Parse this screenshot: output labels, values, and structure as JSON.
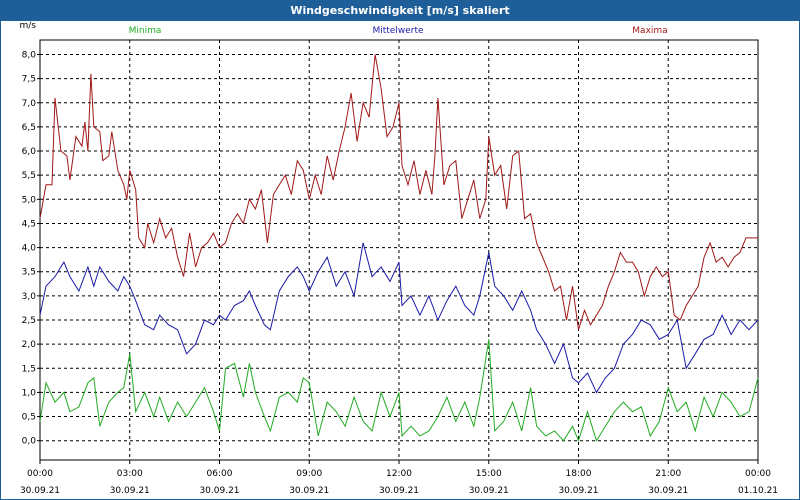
{
  "window": {
    "title": "Windgeschwindigkeit [m/s] skaliert"
  },
  "colors": {
    "titlebar": "#1f5f99",
    "minima": "#22aa22",
    "mittel": "#1a1aa8",
    "maxima": "#a01818",
    "grid": "#000000"
  },
  "chart_data": {
    "type": "line",
    "title": "Windgeschwindigkeit [m/s] skaliert",
    "ylabel": "m/s",
    "xlabel": "",
    "ylim": [
      -0.4,
      8.3
    ],
    "grid": true,
    "legend_placement": "top",
    "y_ticks": [
      "0,0",
      "0,5",
      "1,0",
      "1,5",
      "2,0",
      "2,5",
      "3,0",
      "3,5",
      "4,0",
      "4,5",
      "5,0",
      "5,5",
      "6,0",
      "6,5",
      "7,0",
      "7,5",
      "8,0"
    ],
    "x_ticks": [
      {
        "time": "00:00",
        "date": "30.09.21"
      },
      {
        "time": "03:00",
        "date": "30.09.21"
      },
      {
        "time": "06:00",
        "date": "30.09.21"
      },
      {
        "time": "09:00",
        "date": "30.09.21"
      },
      {
        "time": "12:00",
        "date": "30.09.21"
      },
      {
        "time": "15:00",
        "date": "30.09.21"
      },
      {
        "time": "18:00",
        "date": "30.09.21"
      },
      {
        "time": "21:00",
        "date": "30.09.21"
      },
      {
        "time": "00:00",
        "date": "01.10.21"
      }
    ],
    "x_range_hours": [
      0,
      24
    ],
    "series": [
      {
        "name": "Minima",
        "points": [
          [
            0,
            0.4
          ],
          [
            0.2,
            1.2
          ],
          [
            0.5,
            0.8
          ],
          [
            0.8,
            1.0
          ],
          [
            1.0,
            0.6
          ],
          [
            1.3,
            0.7
          ],
          [
            1.6,
            1.2
          ],
          [
            1.8,
            1.3
          ],
          [
            2.0,
            0.3
          ],
          [
            2.3,
            0.8
          ],
          [
            2.6,
            1.0
          ],
          [
            2.8,
            1.1
          ],
          [
            3.0,
            1.8
          ],
          [
            3.2,
            0.6
          ],
          [
            3.5,
            1.0
          ],
          [
            3.8,
            0.5
          ],
          [
            4.0,
            0.9
          ],
          [
            4.3,
            0.4
          ],
          [
            4.6,
            0.8
          ],
          [
            4.9,
            0.5
          ],
          [
            5.2,
            0.8
          ],
          [
            5.5,
            1.1
          ],
          [
            5.8,
            0.6
          ],
          [
            6.0,
            0.2
          ],
          [
            6.2,
            1.5
          ],
          [
            6.5,
            1.6
          ],
          [
            6.8,
            0.9
          ],
          [
            7.0,
            1.6
          ],
          [
            7.2,
            1.0
          ],
          [
            7.5,
            0.5
          ],
          [
            7.7,
            0.2
          ],
          [
            8.0,
            0.9
          ],
          [
            8.3,
            1.0
          ],
          [
            8.6,
            0.8
          ],
          [
            8.8,
            1.3
          ],
          [
            9.0,
            1.2
          ],
          [
            9.3,
            0.1
          ],
          [
            9.6,
            0.8
          ],
          [
            9.9,
            0.6
          ],
          [
            10.2,
            0.3
          ],
          [
            10.5,
            0.9
          ],
          [
            10.8,
            0.4
          ],
          [
            11.1,
            0.2
          ],
          [
            11.4,
            1.0
          ],
          [
            11.7,
            0.5
          ],
          [
            12.0,
            1.0
          ],
          [
            12.1,
            0.1
          ],
          [
            12.4,
            0.3
          ],
          [
            12.7,
            0.1
          ],
          [
            13.0,
            0.2
          ],
          [
            13.3,
            0.5
          ],
          [
            13.6,
            0.9
          ],
          [
            13.9,
            0.4
          ],
          [
            14.2,
            0.8
          ],
          [
            14.5,
            0.3
          ],
          [
            14.7,
            0.9
          ],
          [
            15.0,
            2.1
          ],
          [
            15.2,
            0.2
          ],
          [
            15.5,
            0.4
          ],
          [
            15.8,
            0.8
          ],
          [
            16.1,
            0.2
          ],
          [
            16.4,
            1.1
          ],
          [
            16.6,
            0.3
          ],
          [
            16.9,
            0.1
          ],
          [
            17.2,
            0.2
          ],
          [
            17.5,
            0.0
          ],
          [
            17.8,
            0.3
          ],
          [
            18.0,
            0.0
          ],
          [
            18.3,
            0.6
          ],
          [
            18.6,
            0.0
          ],
          [
            18.9,
            0.3
          ],
          [
            19.2,
            0.6
          ],
          [
            19.5,
            0.8
          ],
          [
            19.8,
            0.6
          ],
          [
            20.1,
            0.7
          ],
          [
            20.4,
            0.1
          ],
          [
            20.7,
            0.4
          ],
          [
            21.0,
            1.1
          ],
          [
            21.3,
            0.6
          ],
          [
            21.6,
            0.8
          ],
          [
            21.9,
            0.2
          ],
          [
            22.2,
            0.9
          ],
          [
            22.5,
            0.5
          ],
          [
            22.8,
            1.0
          ],
          [
            23.1,
            0.8
          ],
          [
            23.4,
            0.5
          ],
          [
            23.7,
            0.6
          ],
          [
            24.0,
            1.3
          ]
        ]
      },
      {
        "name": "Mittelwerte",
        "points": [
          [
            0,
            2.6
          ],
          [
            0.2,
            3.2
          ],
          [
            0.5,
            3.4
          ],
          [
            0.8,
            3.7
          ],
          [
            1.0,
            3.4
          ],
          [
            1.3,
            3.1
          ],
          [
            1.6,
            3.6
          ],
          [
            1.8,
            3.2
          ],
          [
            2.0,
            3.6
          ],
          [
            2.3,
            3.3
          ],
          [
            2.6,
            3.1
          ],
          [
            2.8,
            3.4
          ],
          [
            3.0,
            3.2
          ],
          [
            3.2,
            2.9
          ],
          [
            3.5,
            2.4
          ],
          [
            3.8,
            2.3
          ],
          [
            4.0,
            2.6
          ],
          [
            4.3,
            2.4
          ],
          [
            4.6,
            2.3
          ],
          [
            4.9,
            1.8
          ],
          [
            5.2,
            2.0
          ],
          [
            5.5,
            2.5
          ],
          [
            5.8,
            2.4
          ],
          [
            6.0,
            2.6
          ],
          [
            6.2,
            2.5
          ],
          [
            6.5,
            2.8
          ],
          [
            6.8,
            2.9
          ],
          [
            7.0,
            3.1
          ],
          [
            7.2,
            2.8
          ],
          [
            7.5,
            2.4
          ],
          [
            7.7,
            2.3
          ],
          [
            8.0,
            3.1
          ],
          [
            8.3,
            3.4
          ],
          [
            8.6,
            3.6
          ],
          [
            8.8,
            3.4
          ],
          [
            9.0,
            3.1
          ],
          [
            9.3,
            3.5
          ],
          [
            9.6,
            3.8
          ],
          [
            9.9,
            3.2
          ],
          [
            10.2,
            3.5
          ],
          [
            10.5,
            3.0
          ],
          [
            10.8,
            4.1
          ],
          [
            11.1,
            3.4
          ],
          [
            11.4,
            3.6
          ],
          [
            11.7,
            3.3
          ],
          [
            12.0,
            3.7
          ],
          [
            12.1,
            2.8
          ],
          [
            12.4,
            3.0
          ],
          [
            12.7,
            2.6
          ],
          [
            13.0,
            3.0
          ],
          [
            13.3,
            2.5
          ],
          [
            13.6,
            2.9
          ],
          [
            13.9,
            3.2
          ],
          [
            14.2,
            2.8
          ],
          [
            14.5,
            2.6
          ],
          [
            14.7,
            3.0
          ],
          [
            15.0,
            3.9
          ],
          [
            15.2,
            3.2
          ],
          [
            15.5,
            3.0
          ],
          [
            15.8,
            2.7
          ],
          [
            16.1,
            3.1
          ],
          [
            16.4,
            2.7
          ],
          [
            16.6,
            2.3
          ],
          [
            16.9,
            2.0
          ],
          [
            17.2,
            1.6
          ],
          [
            17.5,
            2.0
          ],
          [
            17.8,
            1.3
          ],
          [
            18.0,
            1.2
          ],
          [
            18.3,
            1.4
          ],
          [
            18.6,
            1.0
          ],
          [
            18.9,
            1.3
          ],
          [
            19.2,
            1.5
          ],
          [
            19.5,
            2.0
          ],
          [
            19.8,
            2.2
          ],
          [
            20.1,
            2.5
          ],
          [
            20.4,
            2.4
          ],
          [
            20.7,
            2.1
          ],
          [
            21.0,
            2.2
          ],
          [
            21.3,
            2.5
          ],
          [
            21.6,
            1.5
          ],
          [
            21.9,
            1.8
          ],
          [
            22.2,
            2.1
          ],
          [
            22.5,
            2.2
          ],
          [
            22.8,
            2.6
          ],
          [
            23.1,
            2.2
          ],
          [
            23.4,
            2.5
          ],
          [
            23.7,
            2.3
          ],
          [
            24.0,
            2.5
          ]
        ]
      },
      {
        "name": "Maxima",
        "points": [
          [
            0,
            4.6
          ],
          [
            0.2,
            5.3
          ],
          [
            0.4,
            5.3
          ],
          [
            0.5,
            7.1
          ],
          [
            0.7,
            6.0
          ],
          [
            0.9,
            5.9
          ],
          [
            1.0,
            5.4
          ],
          [
            1.2,
            6.3
          ],
          [
            1.4,
            6.1
          ],
          [
            1.5,
            6.6
          ],
          [
            1.6,
            6.0
          ],
          [
            1.7,
            7.6
          ],
          [
            1.8,
            6.5
          ],
          [
            2.0,
            6.4
          ],
          [
            2.1,
            5.8
          ],
          [
            2.3,
            5.9
          ],
          [
            2.4,
            6.4
          ],
          [
            2.6,
            5.6
          ],
          [
            2.8,
            5.3
          ],
          [
            2.9,
            5.0
          ],
          [
            3.0,
            5.6
          ],
          [
            3.2,
            5.2
          ],
          [
            3.3,
            4.2
          ],
          [
            3.5,
            4.0
          ],
          [
            3.6,
            4.5
          ],
          [
            3.8,
            4.1
          ],
          [
            4.0,
            4.6
          ],
          [
            4.2,
            4.2
          ],
          [
            4.4,
            4.4
          ],
          [
            4.6,
            3.8
          ],
          [
            4.8,
            3.4
          ],
          [
            5.0,
            4.3
          ],
          [
            5.2,
            3.6
          ],
          [
            5.4,
            4.0
          ],
          [
            5.6,
            4.1
          ],
          [
            5.8,
            4.3
          ],
          [
            6.0,
            4.0
          ],
          [
            6.2,
            4.1
          ],
          [
            6.4,
            4.5
          ],
          [
            6.6,
            4.7
          ],
          [
            6.8,
            4.5
          ],
          [
            7.0,
            5.0
          ],
          [
            7.2,
            4.8
          ],
          [
            7.4,
            5.2
          ],
          [
            7.6,
            4.1
          ],
          [
            7.8,
            5.1
          ],
          [
            8.0,
            5.3
          ],
          [
            8.2,
            5.5
          ],
          [
            8.4,
            5.1
          ],
          [
            8.6,
            5.8
          ],
          [
            8.8,
            5.6
          ],
          [
            9.0,
            5.0
          ],
          [
            9.2,
            5.5
          ],
          [
            9.4,
            5.1
          ],
          [
            9.6,
            5.9
          ],
          [
            9.8,
            5.4
          ],
          [
            10.0,
            6.0
          ],
          [
            10.2,
            6.5
          ],
          [
            10.4,
            7.2
          ],
          [
            10.6,
            6.2
          ],
          [
            10.8,
            7.0
          ],
          [
            11.0,
            6.7
          ],
          [
            11.2,
            8.0
          ],
          [
            11.4,
            7.3
          ],
          [
            11.6,
            6.3
          ],
          [
            11.8,
            6.5
          ],
          [
            12.0,
            7.0
          ],
          [
            12.1,
            5.7
          ],
          [
            12.3,
            5.3
          ],
          [
            12.5,
            5.8
          ],
          [
            12.7,
            5.1
          ],
          [
            12.9,
            5.6
          ],
          [
            13.1,
            5.1
          ],
          [
            13.2,
            5.9
          ],
          [
            13.3,
            7.1
          ],
          [
            13.5,
            5.3
          ],
          [
            13.7,
            5.7
          ],
          [
            13.9,
            5.8
          ],
          [
            14.1,
            4.6
          ],
          [
            14.3,
            5.0
          ],
          [
            14.5,
            5.4
          ],
          [
            14.7,
            4.6
          ],
          [
            14.9,
            5.0
          ],
          [
            15.0,
            6.3
          ],
          [
            15.2,
            5.5
          ],
          [
            15.4,
            5.7
          ],
          [
            15.6,
            4.8
          ],
          [
            15.8,
            5.9
          ],
          [
            16.0,
            6.0
          ],
          [
            16.2,
            4.6
          ],
          [
            16.4,
            4.7
          ],
          [
            16.6,
            4.1
          ],
          [
            16.8,
            3.8
          ],
          [
            17.0,
            3.5
          ],
          [
            17.2,
            3.1
          ],
          [
            17.4,
            3.2
          ],
          [
            17.6,
            2.5
          ],
          [
            17.8,
            3.2
          ],
          [
            18.0,
            2.3
          ],
          [
            18.2,
            2.7
          ],
          [
            18.4,
            2.4
          ],
          [
            18.6,
            2.6
          ],
          [
            18.8,
            2.8
          ],
          [
            19.0,
            3.2
          ],
          [
            19.2,
            3.5
          ],
          [
            19.4,
            3.9
          ],
          [
            19.6,
            3.7
          ],
          [
            19.8,
            3.7
          ],
          [
            20.0,
            3.5
          ],
          [
            20.2,
            3.0
          ],
          [
            20.4,
            3.4
          ],
          [
            20.6,
            3.6
          ],
          [
            20.8,
            3.4
          ],
          [
            21.0,
            3.5
          ],
          [
            21.2,
            2.6
          ],
          [
            21.4,
            2.5
          ],
          [
            21.6,
            2.8
          ],
          [
            21.8,
            3.0
          ],
          [
            22.0,
            3.2
          ],
          [
            22.2,
            3.8
          ],
          [
            22.4,
            4.1
          ],
          [
            22.6,
            3.7
          ],
          [
            22.8,
            3.8
          ],
          [
            23.0,
            3.6
          ],
          [
            23.2,
            3.8
          ],
          [
            23.4,
            3.9
          ],
          [
            23.6,
            4.2
          ],
          [
            24.0,
            4.2
          ]
        ]
      }
    ]
  }
}
